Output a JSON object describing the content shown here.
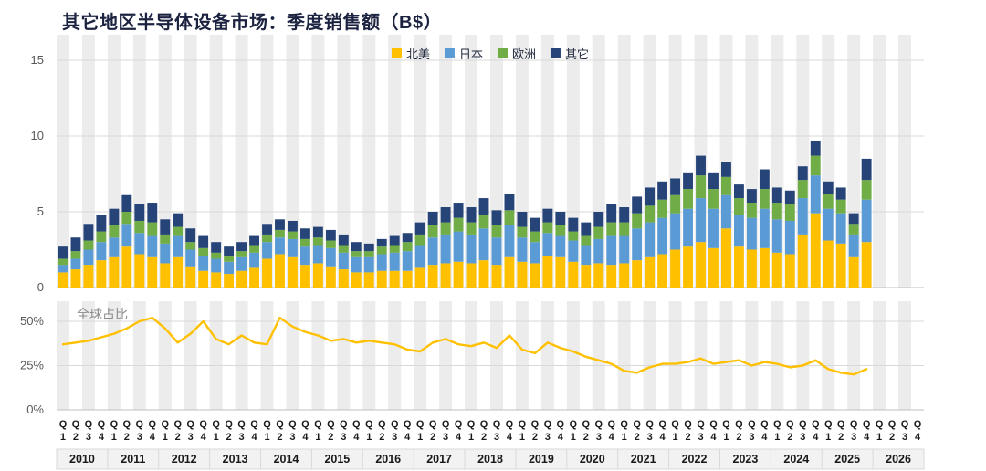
{
  "title": "其它地区半导体设备市场：季度销售额（B$）",
  "share_label": "全球占比",
  "legend": [
    {
      "label": "北美",
      "color": "#FFC000"
    },
    {
      "label": "日本",
      "color": "#5B9BD5"
    },
    {
      "label": "欧洲",
      "color": "#70AD47"
    },
    {
      "label": "其它",
      "color": "#264478"
    }
  ],
  "x_axis": {
    "quarter_prefix": "Q",
    "quarter_numbers": [
      "1",
      "2",
      "3",
      "4"
    ],
    "years": [
      "2010",
      "2011",
      "2012",
      "2013",
      "2014",
      "2015",
      "2016",
      "2017",
      "2018",
      "2019",
      "2020",
      "2021",
      "2022",
      "2023",
      "2024",
      "2025",
      "2026"
    ]
  },
  "chart_data": [
    {
      "type": "bar",
      "stacked": true,
      "title": "其它地区半导体设备市场：季度销售额（B$）",
      "ylabel": "季度销售额 (B$)",
      "ylim": [
        0,
        16.5
      ],
      "yticks": [
        0,
        5,
        10,
        15
      ],
      "grid": true,
      "legend_position": "top-center",
      "categories": [
        "2010Q1",
        "2010Q2",
        "2010Q3",
        "2010Q4",
        "2011Q1",
        "2011Q2",
        "2011Q3",
        "2011Q4",
        "2012Q1",
        "2012Q2",
        "2012Q3",
        "2012Q4",
        "2013Q1",
        "2013Q2",
        "2013Q3",
        "2013Q4",
        "2014Q1",
        "2014Q2",
        "2014Q3",
        "2014Q4",
        "2015Q1",
        "2015Q2",
        "2015Q3",
        "2015Q4",
        "2016Q1",
        "2016Q2",
        "2016Q3",
        "2016Q4",
        "2017Q1",
        "2017Q2",
        "2017Q3",
        "2017Q4",
        "2018Q1",
        "2018Q2",
        "2018Q3",
        "2018Q4",
        "2019Q1",
        "2019Q2",
        "2019Q3",
        "2019Q4",
        "2020Q1",
        "2020Q2",
        "2020Q3",
        "2020Q4",
        "2021Q1",
        "2021Q2",
        "2021Q3",
        "2021Q4",
        "2022Q1",
        "2022Q2",
        "2022Q3",
        "2022Q4",
        "2023Q1",
        "2023Q2",
        "2023Q3",
        "2023Q4",
        "2024Q1",
        "2024Q2",
        "2024Q3",
        "2024Q4",
        "2025Q1",
        "2025Q2",
        "2025Q3",
        "2025Q4"
      ],
      "series": [
        {
          "name": "北美",
          "color": "#FFC000",
          "values": [
            1.0,
            1.2,
            1.5,
            1.8,
            2.0,
            2.7,
            2.2,
            2.0,
            1.6,
            2.0,
            1.4,
            1.1,
            1.0,
            0.9,
            1.1,
            1.3,
            1.9,
            2.2,
            2.0,
            1.5,
            1.6,
            1.4,
            1.2,
            1.0,
            1.0,
            1.1,
            1.1,
            1.1,
            1.3,
            1.5,
            1.6,
            1.7,
            1.6,
            1.8,
            1.5,
            2.0,
            1.7,
            1.6,
            2.1,
            2.0,
            1.7,
            1.5,
            1.6,
            1.5,
            1.6,
            1.8,
            2.0,
            2.2,
            2.5,
            2.7,
            3.0,
            2.6,
            3.9,
            2.7,
            2.5,
            2.6,
            2.3,
            2.2,
            3.5,
            4.9,
            3.1,
            2.9,
            2.0,
            3.0
          ]
        },
        {
          "name": "日本",
          "color": "#5B9BD5",
          "values": [
            0.5,
            0.7,
            1.0,
            1.2,
            1.3,
            1.5,
            1.4,
            1.4,
            1.3,
            1.4,
            1.1,
            1.0,
            0.9,
            0.8,
            0.9,
            1.0,
            1.1,
            1.1,
            1.2,
            1.2,
            1.2,
            1.2,
            1.1,
            1.0,
            1.0,
            1.1,
            1.2,
            1.3,
            1.5,
            1.8,
            1.9,
            2.0,
            1.9,
            2.1,
            1.8,
            2.1,
            1.6,
            1.4,
            1.5,
            1.4,
            1.4,
            1.3,
            1.6,
            1.9,
            1.8,
            2.1,
            2.3,
            2.4,
            2.4,
            2.5,
            2.9,
            2.6,
            2.2,
            2.1,
            2.1,
            2.6,
            2.2,
            2.2,
            2.4,
            2.5,
            2.1,
            2.0,
            1.5,
            2.8
          ]
        },
        {
          "name": "欧洲",
          "color": "#70AD47",
          "values": [
            0.4,
            0.5,
            0.6,
            0.7,
            0.8,
            0.8,
            0.8,
            0.9,
            0.6,
            0.6,
            0.5,
            0.5,
            0.4,
            0.4,
            0.4,
            0.5,
            0.5,
            0.5,
            0.5,
            0.5,
            0.5,
            0.5,
            0.5,
            0.4,
            0.4,
            0.5,
            0.5,
            0.6,
            0.7,
            0.8,
            0.8,
            0.9,
            0.8,
            0.9,
            0.8,
            1.0,
            0.7,
            0.7,
            0.7,
            0.7,
            0.6,
            0.6,
            0.8,
            0.9,
            0.9,
            1.0,
            1.1,
            1.2,
            1.2,
            1.3,
            1.5,
            1.3,
            1.2,
            1.1,
            1.0,
            1.3,
            1.1,
            1.1,
            1.2,
            1.3,
            1.0,
            0.9,
            0.7,
            1.3
          ]
        },
        {
          "name": "其它",
          "color": "#264478",
          "values": [
            0.8,
            0.9,
            1.1,
            1.1,
            1.1,
            1.1,
            1.1,
            1.3,
            1.0,
            0.9,
            0.9,
            0.8,
            0.7,
            0.6,
            0.6,
            0.6,
            0.7,
            0.7,
            0.7,
            0.7,
            0.7,
            0.7,
            0.7,
            0.6,
            0.5,
            0.5,
            0.6,
            0.6,
            0.8,
            0.9,
            1.0,
            1.0,
            1.0,
            1.1,
            1.0,
            1.1,
            1.0,
            0.9,
            0.9,
            0.9,
            0.9,
            0.9,
            1.0,
            1.2,
            1.0,
            1.1,
            1.2,
            1.2,
            1.1,
            1.1,
            1.3,
            1.1,
            1.0,
            0.9,
            0.9,
            1.3,
            1.0,
            0.9,
            0.9,
            1.0,
            0.8,
            0.8,
            0.7,
            1.4
          ]
        }
      ]
    },
    {
      "type": "line",
      "title": "全球占比",
      "color": "#FFC000",
      "ylim": [
        0,
        61
      ],
      "yticks": [
        "0%",
        "25%",
        "50%"
      ],
      "grid": true,
      "categories": [
        "2010Q1",
        "2010Q2",
        "2010Q3",
        "2010Q4",
        "2011Q1",
        "2011Q2",
        "2011Q3",
        "2011Q4",
        "2012Q1",
        "2012Q2",
        "2012Q3",
        "2012Q4",
        "2013Q1",
        "2013Q2",
        "2013Q3",
        "2013Q4",
        "2014Q1",
        "2014Q2",
        "2014Q3",
        "2014Q4",
        "2015Q1",
        "2015Q2",
        "2015Q3",
        "2015Q4",
        "2016Q1",
        "2016Q2",
        "2016Q3",
        "2016Q4",
        "2017Q1",
        "2017Q2",
        "2017Q3",
        "2017Q4",
        "2018Q1",
        "2018Q2",
        "2018Q3",
        "2018Q4",
        "2019Q1",
        "2019Q2",
        "2019Q3",
        "2019Q4",
        "2020Q1",
        "2020Q2",
        "2020Q3",
        "2020Q4",
        "2021Q1",
        "2021Q2",
        "2021Q3",
        "2021Q4",
        "2022Q1",
        "2022Q2",
        "2022Q3",
        "2022Q4",
        "2023Q1",
        "2023Q2",
        "2023Q3",
        "2023Q4",
        "2024Q1",
        "2024Q2",
        "2024Q3",
        "2024Q4",
        "2025Q1",
        "2025Q2",
        "2025Q3",
        "2025Q4"
      ],
      "values": [
        37,
        38,
        39,
        41,
        43,
        46,
        50,
        52,
        46,
        38,
        43,
        50,
        40,
        37,
        42,
        38,
        37,
        52,
        47,
        44,
        42,
        39,
        40,
        38,
        39,
        38,
        37,
        34,
        33,
        38,
        40,
        37,
        36,
        38,
        35,
        42,
        34,
        32,
        38,
        35,
        33,
        30,
        28,
        26,
        22,
        21,
        24,
        26,
        26,
        27,
        29,
        26,
        27,
        28,
        25,
        27,
        26,
        24,
        25,
        28,
        23,
        21,
        20,
        23
      ]
    }
  ],
  "style": {
    "stripe_color": "#ececec",
    "gridline_color": "#d9d9d9",
    "axis_text_color": "#595959",
    "category_text_color": "#1a1a1a",
    "year_band_fill": "#f2f2f2"
  }
}
